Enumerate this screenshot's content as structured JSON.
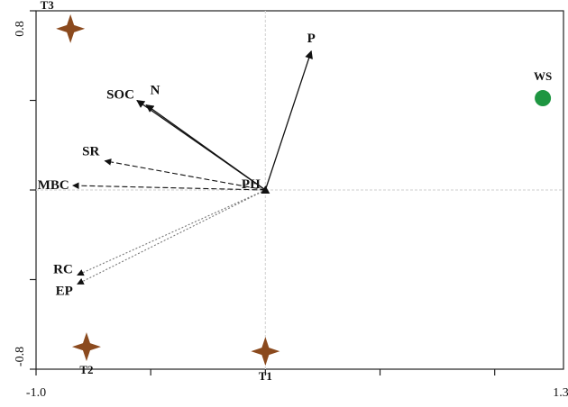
{
  "chart_data": {
    "type": "scatter",
    "title": "",
    "xlabel": "",
    "ylabel": "",
    "xlim": [
      -1.0,
      1.3
    ],
    "ylim": [
      -0.8,
      0.8
    ],
    "x_tick_labels": [
      "-1.0",
      "1.3"
    ],
    "y_tick_labels": [
      "0.8",
      "-0.8"
    ],
    "grid": false,
    "reference_lines": {
      "x": 0,
      "y": 0
    },
    "vectors": [
      {
        "label": "P",
        "x": 0.2,
        "y": 0.62,
        "style": "solid"
      },
      {
        "label": "N",
        "x": -0.52,
        "y": 0.38,
        "style": "solid"
      },
      {
        "label": "SOC",
        "x": -0.56,
        "y": 0.4,
        "style": "solid"
      },
      {
        "label": "SR",
        "x": -0.7,
        "y": 0.13,
        "style": "dashed"
      },
      {
        "label": "MBC",
        "x": -0.84,
        "y": 0.02,
        "style": "dashed"
      },
      {
        "label": "RC",
        "x": -0.82,
        "y": -0.38,
        "style": "dotted"
      },
      {
        "label": "EP",
        "x": -0.82,
        "y": -0.42,
        "style": "dotted"
      },
      {
        "label": "PH",
        "x": 0.0,
        "y": 0.0,
        "style": "point"
      }
    ],
    "samples": [
      {
        "label": "T3",
        "x": -0.85,
        "y": 0.72,
        "marker": "star",
        "color": "#8b4a1e"
      },
      {
        "label": "T2",
        "x": -0.78,
        "y": -0.7,
        "marker": "star",
        "color": "#8b4a1e"
      },
      {
        "label": "T1",
        "x": 0.0,
        "y": -0.72,
        "marker": "star",
        "color": "#8b4a1e"
      },
      {
        "label": "WS",
        "x": 1.21,
        "y": 0.41,
        "marker": "circle",
        "color": "#1e9641"
      }
    ]
  }
}
